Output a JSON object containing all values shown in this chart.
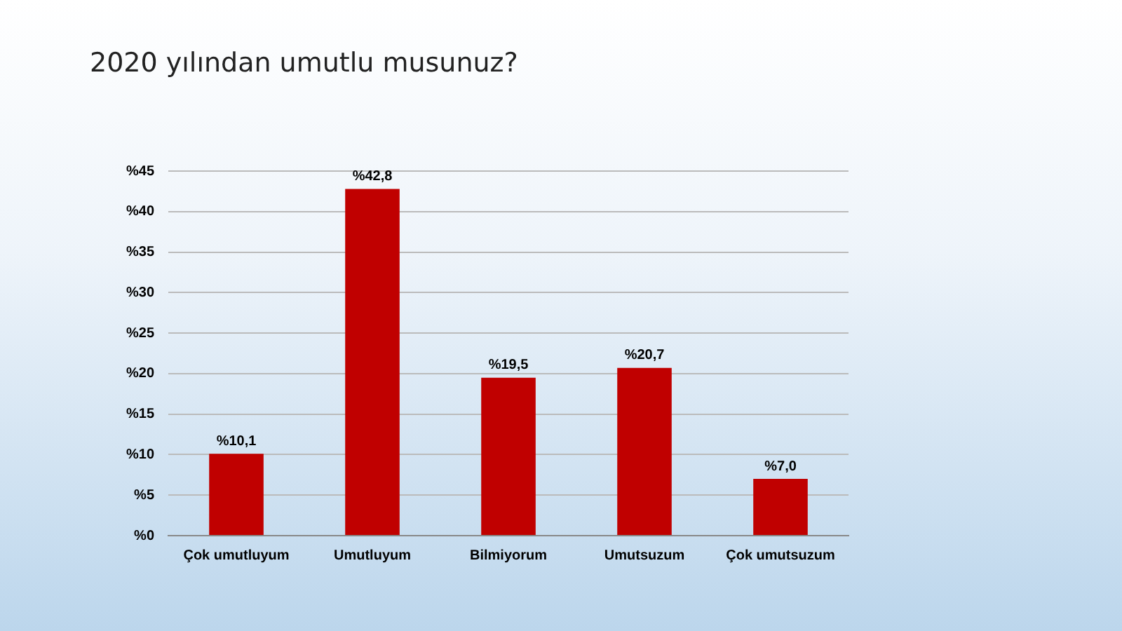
{
  "chart_data": {
    "type": "bar",
    "title": "2020 yılından umutlu musunuz?",
    "categories": [
      "Çok umutluyum",
      "Umutluyum",
      "Bilmiyorum",
      "Umutsuzum",
      "Çok umutsuzum"
    ],
    "values": [
      10.1,
      42.8,
      19.5,
      20.7,
      7.0
    ],
    "value_labels": [
      "%10,1",
      "%42,8",
      "%19,5",
      "%20,7",
      "%7,0"
    ],
    "color": "#c00000",
    "ylim": [
      0,
      45
    ],
    "yticks": [
      {
        "value": 0,
        "label": "%0"
      },
      {
        "value": 5,
        "label": "%5"
      },
      {
        "value": 10,
        "label": "%10"
      },
      {
        "value": 15,
        "label": "%15"
      },
      {
        "value": 20,
        "label": "%20"
      },
      {
        "value": 25,
        "label": "%25"
      },
      {
        "value": 30,
        "label": "%30"
      },
      {
        "value": 35,
        "label": "%35"
      },
      {
        "value": 40,
        "label": "%40"
      },
      {
        "value": 45,
        "label": "%45"
      }
    ],
    "grid": "y",
    "legend": false
  }
}
